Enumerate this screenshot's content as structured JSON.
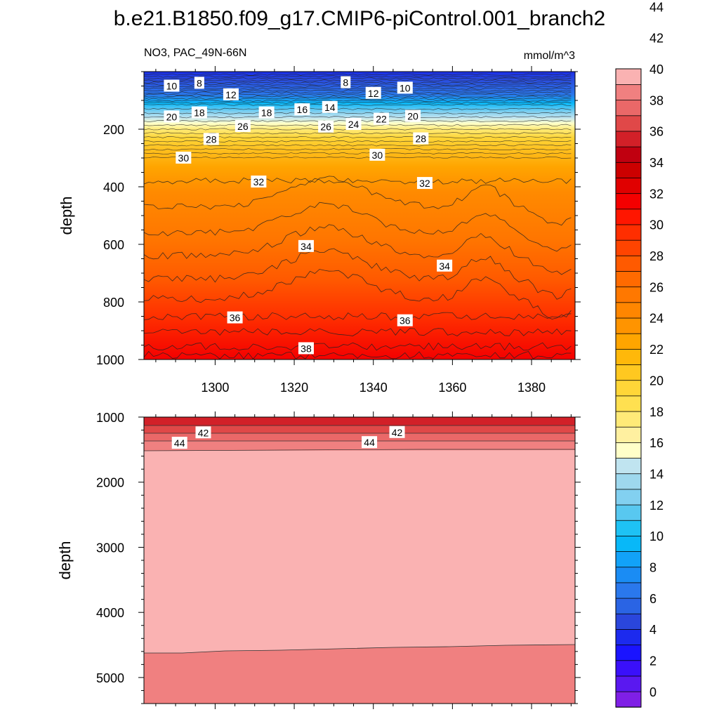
{
  "chart_data": {
    "type": "contour",
    "title": "b.e21.B1850.f09_g17.CMIP6-piControl.001_branch2",
    "subtitle_left": "NO3, PAC_49N-66N",
    "subtitle_right": "mmol/m^3",
    "xlabel": "",
    "ylabel": "depth",
    "xlim": [
      1282,
      1391
    ],
    "x_ticks": [
      "1300",
      "1320",
      "1340",
      "1360",
      "1380"
    ],
    "panels": [
      {
        "name": "upper",
        "ylim": [
          0,
          1000
        ],
        "y_ticks": [
          "200",
          "400",
          "600",
          "800",
          "1000"
        ],
        "contour_labels": [
          {
            "text": "10",
            "x": 1289,
            "y": 50
          },
          {
            "text": "8",
            "x": 1296,
            "y": 40
          },
          {
            "text": "12",
            "x": 1304,
            "y": 80
          },
          {
            "text": "8",
            "x": 1333,
            "y": 38
          },
          {
            "text": "12",
            "x": 1340,
            "y": 75
          },
          {
            "text": "10",
            "x": 1348,
            "y": 57
          },
          {
            "text": "20",
            "x": 1289,
            "y": 157
          },
          {
            "text": "18",
            "x": 1296,
            "y": 143
          },
          {
            "text": "18",
            "x": 1313,
            "y": 143
          },
          {
            "text": "16",
            "x": 1322,
            "y": 132
          },
          {
            "text": "14",
            "x": 1329,
            "y": 124
          },
          {
            "text": "20",
            "x": 1350,
            "y": 155
          },
          {
            "text": "22",
            "x": 1342,
            "y": 165
          },
          {
            "text": "24",
            "x": 1335,
            "y": 183
          },
          {
            "text": "26",
            "x": 1328,
            "y": 192
          },
          {
            "text": "26",
            "x": 1307,
            "y": 190
          },
          {
            "text": "28",
            "x": 1299,
            "y": 235
          },
          {
            "text": "28",
            "x": 1352,
            "y": 233
          },
          {
            "text": "30",
            "x": 1292,
            "y": 300
          },
          {
            "text": "30",
            "x": 1341,
            "y": 290
          },
          {
            "text": "32",
            "x": 1311,
            "y": 383
          },
          {
            "text": "32",
            "x": 1353,
            "y": 388
          },
          {
            "text": "34",
            "x": 1323,
            "y": 607
          },
          {
            "text": "34",
            "x": 1358,
            "y": 675
          },
          {
            "text": "36",
            "x": 1305,
            "y": 855
          },
          {
            "text": "36",
            "x": 1348,
            "y": 865
          },
          {
            "text": "38",
            "x": 1323,
            "y": 962
          }
        ]
      },
      {
        "name": "lower",
        "ylim": [
          1000,
          5400
        ],
        "y_ticks": [
          "1000",
          "2000",
          "3000",
          "4000",
          "5000"
        ],
        "contour_labels": [
          {
            "text": "42",
            "x": 1297,
            "y": 1240
          },
          {
            "text": "44",
            "x": 1291,
            "y": 1400
          },
          {
            "text": "42",
            "x": 1346,
            "y": 1235
          },
          {
            "text": "44",
            "x": 1339,
            "y": 1390
          }
        ]
      }
    ],
    "colorbar": {
      "levels": [
        0,
        2,
        4,
        6,
        8,
        10,
        12,
        14,
        16,
        18,
        20,
        22,
        24,
        26,
        28,
        30,
        32,
        34,
        36,
        38,
        40,
        42,
        44
      ],
      "labels": [
        "0",
        "2",
        "4",
        "6",
        "8",
        "10",
        "12",
        "14",
        "16",
        "18",
        "20",
        "22",
        "24",
        "26",
        "28",
        "30",
        "32",
        "34",
        "36",
        "38",
        "40",
        "42",
        "44"
      ],
      "colors": [
        "#7f1fe6",
        "#5a18f0",
        "#3a10fa",
        "#1a14ff",
        "#1c2aee",
        "#2a46dc",
        "#2a64e4",
        "#2a78ec",
        "#1a8cf4",
        "#12a2f8",
        "#08b8f8",
        "#1ec2f4",
        "#58c8f0",
        "#82d0f0",
        "#9ed8ee",
        "#c0e4f0",
        "#ffffc8",
        "#fff0a0",
        "#ffea78",
        "#ffe050",
        "#ffd638",
        "#ffc820",
        "#ffb80a",
        "#ffa500",
        "#ff9400",
        "#ff8600",
        "#ff7800",
        "#ff6a00",
        "#ff5a00",
        "#ff4400",
        "#ff2e00",
        "#ff1600",
        "#f40000",
        "#e00000",
        "#cc0000",
        "#c00010",
        "#d22028",
        "#e04848",
        "#ea6868",
        "#f08080",
        "#fab2b2"
      ]
    }
  }
}
